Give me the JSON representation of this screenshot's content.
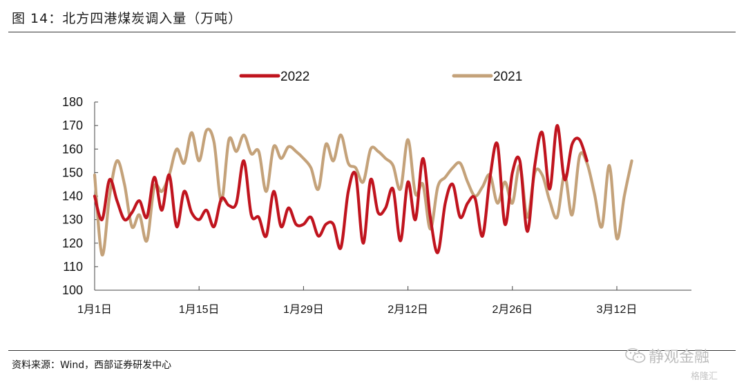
{
  "header": {
    "title": "图 14：北方四港煤炭调入量（万吨）"
  },
  "footer": {
    "source": "资料来源：Wind，西部证券研发中心"
  },
  "watermark": {
    "text": "静观金融",
    "secondary": "格隆汇"
  },
  "chart_data": {
    "type": "line",
    "title": "",
    "xlabel": "",
    "ylabel": "",
    "ylim": [
      100,
      180
    ],
    "yticks": [
      100,
      110,
      120,
      130,
      140,
      150,
      160,
      170,
      180
    ],
    "x_tick_labels": [
      "1月1日",
      "1月15日",
      "1月29日",
      "2月12日",
      "2月26日",
      "3月12日"
    ],
    "x_tick_days": [
      0,
      14,
      28,
      42,
      56,
      70
    ],
    "xlim_days": [
      0,
      80
    ],
    "legend_position": "top-center",
    "grid": false,
    "series": [
      {
        "name": "2022",
        "color": "#c0141e",
        "values": [
          140,
          130,
          147,
          138,
          130,
          133,
          138,
          131,
          148,
          134,
          149,
          127,
          142,
          133,
          130,
          134,
          127,
          139,
          136,
          137,
          155,
          132,
          131,
          123,
          142,
          127,
          135,
          128,
          128,
          131,
          123,
          128,
          128,
          118,
          142,
          149,
          120,
          147,
          133,
          135,
          143,
          121,
          146,
          130,
          156,
          131,
          116,
          137,
          145,
          131,
          137,
          139,
          123,
          148,
          162,
          128,
          150,
          155,
          125,
          153,
          167,
          143,
          170,
          147,
          162,
          164,
          155
        ]
      },
      {
        "name": "2021",
        "color": "#c4a27a",
        "values": [
          149,
          115,
          140,
          155,
          145,
          127,
          132,
          121,
          144,
          142,
          149,
          160,
          154,
          167,
          155,
          168,
          163,
          138,
          164,
          159,
          166,
          158,
          159,
          142,
          161,
          156,
          161,
          159,
          156,
          152,
          143,
          162,
          155,
          166,
          154,
          152,
          146,
          160,
          159,
          156,
          153,
          143,
          164,
          141,
          145,
          126,
          144,
          148,
          152,
          154,
          146,
          140,
          144,
          149,
          137,
          146,
          137,
          153,
          131,
          150,
          149,
          138,
          131,
          149,
          132,
          157,
          154,
          141,
          127,
          153,
          122,
          140,
          155
        ]
      }
    ]
  }
}
